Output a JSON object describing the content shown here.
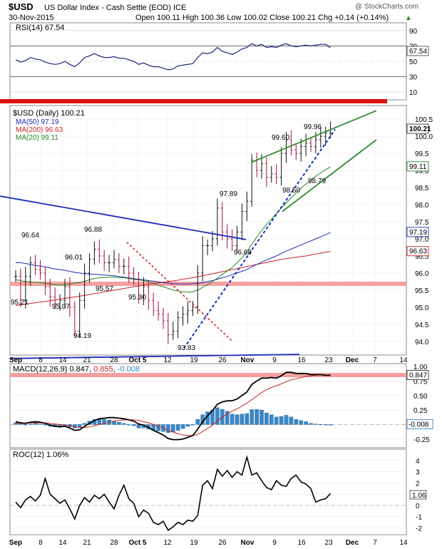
{
  "header": {
    "symbol": "$USD",
    "name": "US Dollar Index - Cash Settle (EOD) ICE",
    "date": "30-Nov-2015",
    "ohlc": "Open 100.11  High 100.36  Low 100.02  Close 100.21  Chg +0.14 (+0.14%)",
    "up_arrow": "▲",
    "source": "@ StockCharts.com"
  },
  "rsi": {
    "label": "RSI(14) 67.54",
    "value_tag": "67.54",
    "ticks": [
      "90",
      "70",
      "50",
      "30",
      "10"
    ]
  },
  "price": {
    "label": "$USD (Daily) 100.21",
    "legend": [
      {
        "text": "MA(50) 97.19",
        "color": "#1f2fb8"
      },
      {
        "text": "MA(200) 96.63",
        "color": "#cc2222"
      },
      {
        "text": "MA(20) 99.11",
        "color": "#228822"
      }
    ],
    "ticks": [
      "100.5",
      "100.0",
      "99.5",
      "99.0",
      "98.5",
      "98.0",
      "97.5",
      "97.0",
      "96.5",
      "96.0",
      "95.5",
      "95.0",
      "94.5",
      "94.0"
    ],
    "tags": {
      "close": "100.21",
      "ma20": "99.11",
      "ma50": "97.19",
      "ma200": "96.63"
    },
    "annotations": [
      "96.64",
      "96.88",
      "96.01",
      "95.57",
      "95.21",
      "95.07",
      "94.19",
      "95.30",
      "93.83",
      "97.89",
      "96.68",
      "99.60",
      "99.96",
      "98.50",
      "98.79"
    ]
  },
  "macd": {
    "label": "MACD(12,26,9)",
    "value": "0.847",
    "signal": "0.855",
    "hist": "-0.008",
    "ticks": [
      "1.00",
      "0.75",
      "0.50",
      "0.25",
      "0.00",
      "-0.25"
    ],
    "tags": {
      "macd": "0.847",
      "hist": "-0.008"
    }
  },
  "roc": {
    "label": "ROC(12) 1.06%",
    "ticks": [
      "4",
      "3",
      "2",
      "1",
      "0",
      "-1",
      "-2"
    ],
    "tag": "1.06"
  },
  "x_axis": {
    "ticks": [
      "Sep",
      "8",
      "14",
      "21",
      "28",
      "Oct 5",
      "12",
      "19",
      "26",
      "Nov",
      "9",
      "16",
      "23",
      "Dec",
      "7",
      "14"
    ]
  },
  "colors": {
    "up": "#111111",
    "down": "#aa1133",
    "rsi_line": "#1a237e",
    "ma50": "#1f2fb8",
    "ma200": "#cc2222",
    "ma20": "#228822",
    "macd_line": "#000000",
    "signal_line": "#cc2222",
    "hist": "#3a87c8",
    "channel": "#2e8b2e",
    "support": "#f4a0a0",
    "dotted_up": "#1030c0",
    "dotted_down": "#cc2222",
    "thick_red": "#e01010",
    "trend_blue": "#1a2fb8"
  },
  "chart_data": {
    "type": "line",
    "title": "$USD US Dollar Index - Cash Settle (EOD) ICE",
    "x": [
      "Aug 31",
      "Sep 1",
      "Sep 2",
      "Sep 3",
      "Sep 4",
      "Sep 8",
      "Sep 9",
      "Sep 10",
      "Sep 11",
      "Sep 14",
      "Sep 15",
      "Sep 16",
      "Sep 17",
      "Sep 18",
      "Sep 21",
      "Sep 22",
      "Sep 23",
      "Sep 24",
      "Sep 25",
      "Sep 28",
      "Sep 29",
      "Sep 30",
      "Oct 1",
      "Oct 2",
      "Oct 5",
      "Oct 6",
      "Oct 7",
      "Oct 8",
      "Oct 9",
      "Oct 12",
      "Oct 13",
      "Oct 14",
      "Oct 15",
      "Oct 16",
      "Oct 19",
      "Oct 20",
      "Oct 21",
      "Oct 22",
      "Oct 23",
      "Oct 26",
      "Oct 27",
      "Oct 28",
      "Oct 29",
      "Oct 30",
      "Nov 2",
      "Nov 3",
      "Nov 4",
      "Nov 5",
      "Nov 6",
      "Nov 9",
      "Nov 10",
      "Nov 11",
      "Nov 12",
      "Nov 13",
      "Nov 16",
      "Nov 17",
      "Nov 18",
      "Nov 19",
      "Nov 20",
      "Nov 23",
      "Nov 24",
      "Nov 25",
      "Nov 26",
      "Nov 27",
      "Nov 30"
    ],
    "series": [
      {
        "name": "$USD (Daily)",
        "values": [
          95.9,
          95.2,
          95.9,
          96.3,
          96.1,
          96.0,
          95.6,
          95.3,
          95.1,
          95.2,
          95.6,
          95.0,
          94.3,
          95.2,
          96.0,
          96.4,
          96.7,
          96.5,
          96.3,
          96.3,
          96.4,
          96.2,
          96.2,
          96.0,
          95.8,
          95.3,
          95.6,
          95.2,
          94.9,
          94.8,
          94.6,
          94.2,
          94.3,
          94.7,
          94.8,
          94.9,
          95.0,
          96.0,
          96.8,
          96.8,
          97.0,
          97.9,
          97.2,
          97.0,
          96.8,
          97.2,
          97.8,
          98.1,
          99.3,
          99.0,
          99.2,
          98.8,
          98.9,
          98.8,
          99.5,
          99.9,
          99.6,
          99.5,
          99.7,
          99.8,
          99.7,
          99.9,
          100.0,
          100.1,
          100.21
        ]
      },
      {
        "name": "MA(50)",
        "values": [
          null,
          null,
          null,
          null,
          null,
          null,
          null,
          null,
          null,
          null,
          null,
          null,
          null,
          null,
          null,
          null,
          null,
          null,
          null,
          null,
          null,
          null,
          null,
          null,
          null,
          null,
          null,
          null,
          null,
          null,
          null,
          null,
          null,
          null,
          null,
          null,
          null,
          null,
          null,
          null,
          null,
          null,
          null,
          null,
          null,
          null,
          null,
          null,
          null,
          null,
          null,
          null,
          null,
          null,
          null,
          null,
          null,
          null,
          null,
          null,
          null,
          null,
          null,
          null,
          97.19
        ]
      },
      {
        "name": "MA(200)",
        "values": [
          null,
          null,
          null,
          null,
          null,
          null,
          null,
          null,
          null,
          null,
          null,
          null,
          null,
          null,
          null,
          null,
          null,
          null,
          null,
          null,
          null,
          null,
          null,
          null,
          null,
          null,
          null,
          null,
          null,
          null,
          null,
          null,
          null,
          null,
          null,
          null,
          null,
          null,
          null,
          null,
          null,
          null,
          null,
          null,
          null,
          null,
          null,
          null,
          null,
          null,
          null,
          null,
          null,
          null,
          null,
          null,
          null,
          null,
          null,
          null,
          null,
          null,
          null,
          null,
          96.63
        ]
      },
      {
        "name": "MA(20)",
        "values": [
          null,
          null,
          null,
          null,
          null,
          null,
          null,
          null,
          null,
          null,
          null,
          null,
          null,
          null,
          null,
          null,
          null,
          null,
          null,
          null,
          null,
          null,
          null,
          null,
          null,
          null,
          null,
          null,
          null,
          null,
          null,
          null,
          null,
          null,
          null,
          null,
          null,
          null,
          null,
          null,
          null,
          null,
          null,
          null,
          null,
          null,
          null,
          null,
          null,
          null,
          null,
          null,
          null,
          null,
          null,
          null,
          null,
          null,
          null,
          null,
          null,
          null,
          null,
          null,
          99.11
        ]
      }
    ],
    "ylim": [
      93.6,
      100.9
    ],
    "rsi_last": 67.54,
    "macd_last": {
      "macd": 0.847,
      "signal": 0.855,
      "hist": -0.008
    },
    "roc_last": 1.06
  }
}
